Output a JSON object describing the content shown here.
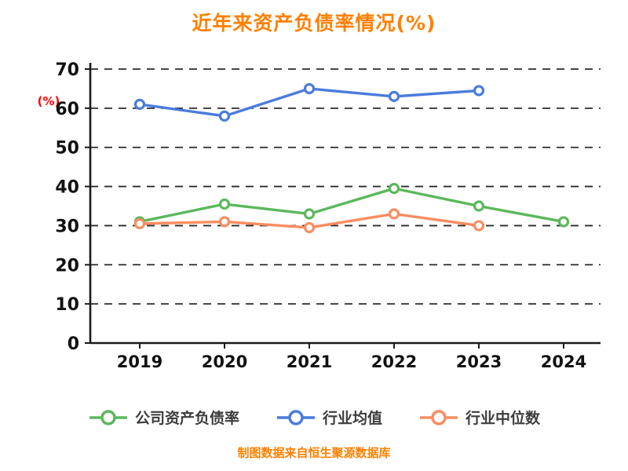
{
  "title": "近年来资产负债率情况(%)",
  "y_axis_label": "(%)",
  "footer": "制图数据来自恒生聚源数据库",
  "colors": {
    "title": "#FF8000",
    "footer": "#FF8000",
    "axis_label": "#FF0000",
    "grid": "#2b2b2b",
    "axis": "#1a1a1a",
    "tick_label": "#111111"
  },
  "chart_data": {
    "type": "line",
    "categories": [
      "2019",
      "2020",
      "2021",
      "2022",
      "2023",
      "2024"
    ],
    "series": [
      {
        "name": "公司资产负债率",
        "color": "#5CB85C",
        "values": [
          31,
          35.5,
          33,
          39.5,
          35,
          31
        ]
      },
      {
        "name": "行业均值",
        "color": "#4A7CDC",
        "values": [
          61,
          58,
          65,
          63,
          64.5,
          null
        ]
      },
      {
        "name": "行业中位数",
        "color": "#F98D60",
        "values": [
          30.5,
          31,
          29.5,
          33,
          30,
          null
        ]
      }
    ],
    "ylim": [
      0,
      70
    ],
    "yticks": [
      0,
      10,
      20,
      30,
      40,
      50,
      60,
      70
    ],
    "grid": "dashed-horizontal",
    "legend_position": "bottom",
    "marker": "open-circle"
  }
}
